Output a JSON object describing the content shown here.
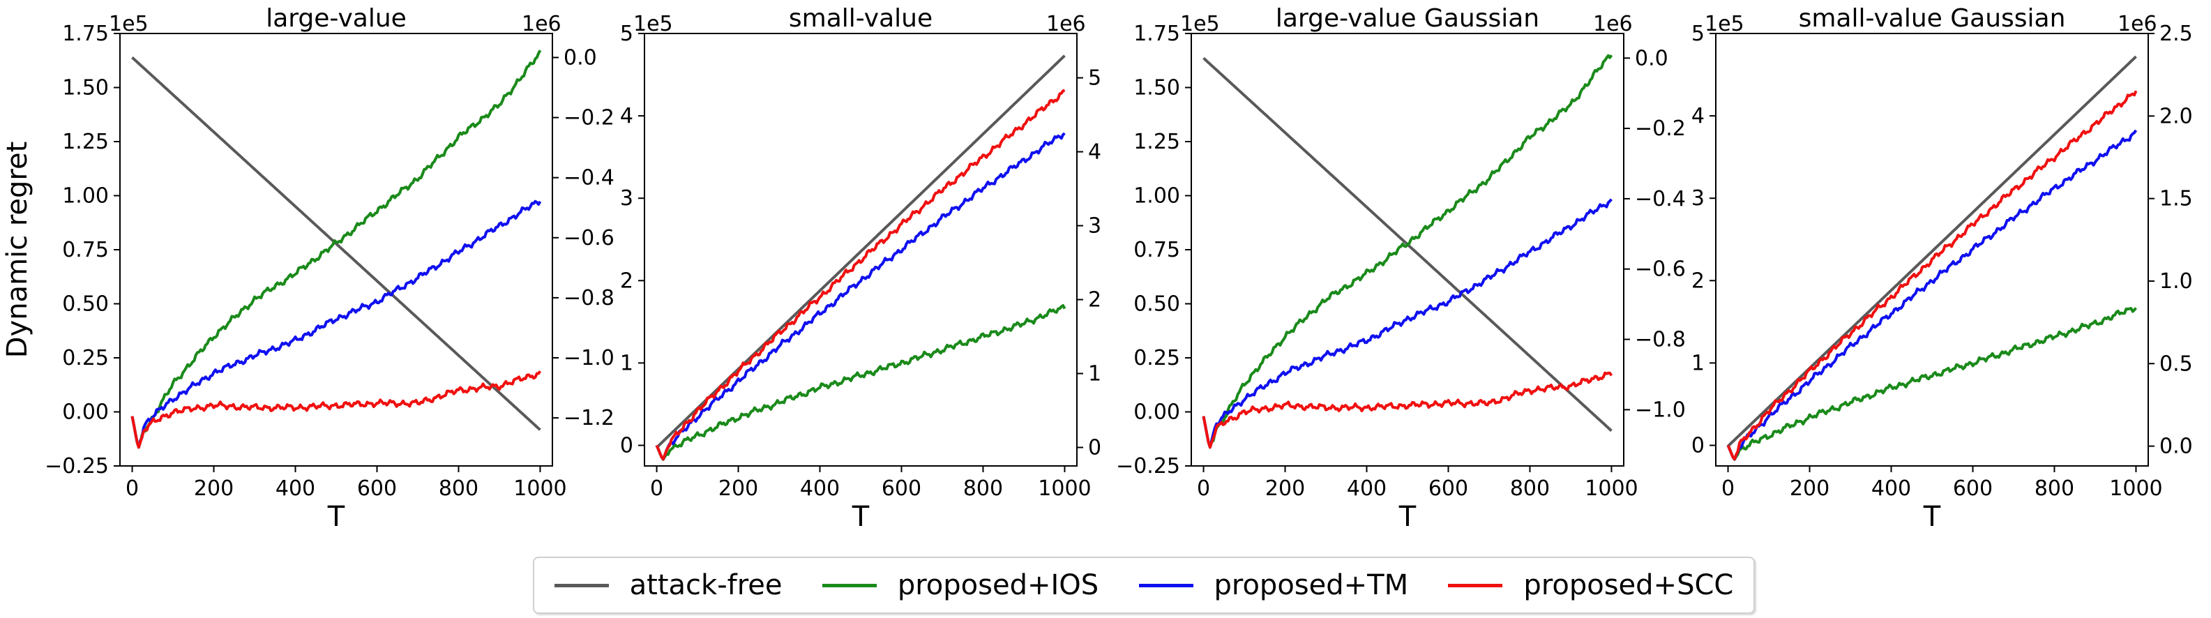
{
  "ylabel": "Dynamic regret",
  "colors": {
    "attack_free": "#595959",
    "ios": "#1a8a1a",
    "tm": "#1010f0",
    "scc": "#f01010"
  },
  "legend": [
    {
      "label": "attack-free",
      "key": "attack_free"
    },
    {
      "label": "proposed+IOS",
      "key": "ios"
    },
    {
      "label": "proposed+TM",
      "key": "tm"
    },
    {
      "label": "proposed+SCC",
      "key": "scc"
    }
  ],
  "chart_data": [
    {
      "type": "line",
      "title": "large-value",
      "xlabel": "T",
      "xlim": [
        -30,
        1030
      ],
      "xticks": [
        0,
        200,
        400,
        600,
        800,
        1000
      ],
      "left_axis": {
        "multiplier": "1e5",
        "ylim": [
          -0.25,
          1.75
        ],
        "ticks": [
          -0.25,
          0.0,
          0.25,
          0.5,
          0.75,
          1.0,
          1.25,
          1.5,
          1.75
        ],
        "ticklabels": [
          "−0.25",
          "0.00",
          "0.25",
          "0.50",
          "0.75",
          "1.00",
          "1.25",
          "1.50",
          "1.75"
        ]
      },
      "right_axis": {
        "multiplier": "1e6",
        "ylim": [
          -1.36,
          0.08
        ],
        "ticks": [
          0.0,
          -0.2,
          -0.4,
          -0.6,
          -0.8,
          -1.0,
          -1.2
        ],
        "ticklabels": [
          "0.0",
          "−0.2",
          "−0.4",
          "−0.6",
          "−0.8",
          "−1.0",
          "−1.2"
        ]
      },
      "series": [
        {
          "key": "attack_free",
          "axis": "right",
          "x": [
            0,
            1000
          ],
          "y": [
            0.0,
            -1.24
          ]
        },
        {
          "key": "ios",
          "axis": "left",
          "x": [
            0,
            15,
            30,
            50,
            100,
            200,
            300,
            400,
            500,
            600,
            700,
            800,
            900,
            1000
          ],
          "y": [
            -0.02,
            -0.17,
            -0.08,
            -0.03,
            0.13,
            0.35,
            0.52,
            0.64,
            0.78,
            0.93,
            1.08,
            1.27,
            1.42,
            1.66
          ]
        },
        {
          "key": "tm",
          "axis": "left",
          "x": [
            0,
            15,
            30,
            50,
            100,
            200,
            300,
            400,
            500,
            600,
            700,
            800,
            900,
            1000
          ],
          "y": [
            -0.02,
            -0.17,
            -0.06,
            -0.02,
            0.06,
            0.18,
            0.26,
            0.33,
            0.43,
            0.51,
            0.62,
            0.74,
            0.86,
            0.98
          ]
        },
        {
          "key": "scc",
          "axis": "left",
          "x": [
            0,
            15,
            30,
            50,
            100,
            200,
            300,
            400,
            500,
            600,
            700,
            800,
            900,
            1000
          ],
          "y": [
            -0.02,
            -0.17,
            -0.08,
            -0.05,
            0.0,
            0.03,
            0.02,
            0.02,
            0.03,
            0.04,
            0.04,
            0.1,
            0.12,
            0.18
          ]
        }
      ]
    },
    {
      "type": "line",
      "title": "small-value",
      "xlabel": "T",
      "xlim": [
        -30,
        1030
      ],
      "xticks": [
        0,
        200,
        400,
        600,
        800,
        1000
      ],
      "left_axis": {
        "multiplier": "1e5",
        "ylim": [
          -0.25,
          5.0
        ],
        "ticks": [
          0,
          1,
          2,
          3,
          4,
          5
        ],
        "ticklabels": [
          "0",
          "1",
          "2",
          "3",
          "4",
          "5"
        ]
      },
      "right_axis": {
        "multiplier": "1e6",
        "ylim": [
          -0.25,
          5.6
        ],
        "ticks": [
          0,
          1,
          2,
          3,
          4,
          5
        ],
        "ticklabels": [
          "0",
          "1",
          "2",
          "3",
          "4",
          "5"
        ]
      },
      "series": [
        {
          "key": "attack_free",
          "axis": "right",
          "x": [
            0,
            1000
          ],
          "y": [
            0.0,
            5.3
          ]
        },
        {
          "key": "ios",
          "axis": "left",
          "x": [
            0,
            15,
            30,
            100,
            200,
            300,
            400,
            500,
            600,
            700,
            800,
            900,
            1000
          ],
          "y": [
            0.0,
            -0.18,
            -0.05,
            0.12,
            0.34,
            0.52,
            0.7,
            0.85,
            1.0,
            1.16,
            1.32,
            1.48,
            1.68
          ]
        },
        {
          "key": "tm",
          "axis": "left",
          "x": [
            0,
            15,
            30,
            100,
            200,
            300,
            400,
            500,
            600,
            700,
            800,
            900,
            1000
          ],
          "y": [
            0.0,
            -0.18,
            0.0,
            0.35,
            0.78,
            1.2,
            1.6,
            2.0,
            2.38,
            2.76,
            3.12,
            3.46,
            3.8
          ]
        },
        {
          "key": "scc",
          "axis": "left",
          "x": [
            0,
            15,
            30,
            100,
            200,
            300,
            400,
            500,
            600,
            700,
            800,
            900,
            1000
          ],
          "y": [
            0.0,
            -0.18,
            0.02,
            0.42,
            0.9,
            1.36,
            1.8,
            2.25,
            2.68,
            3.1,
            3.5,
            3.9,
            4.3
          ]
        }
      ]
    },
    {
      "type": "line",
      "title": "large-value Gaussian",
      "xlabel": "T",
      "xlim": [
        -30,
        1030
      ],
      "xticks": [
        0,
        200,
        400,
        600,
        800,
        1000
      ],
      "left_axis": {
        "multiplier": "1e5",
        "ylim": [
          -0.25,
          1.75
        ],
        "ticks": [
          -0.25,
          0.0,
          0.25,
          0.5,
          0.75,
          1.0,
          1.25,
          1.5,
          1.75
        ],
        "ticklabels": [
          "−0.25",
          "0.00",
          "0.25",
          "0.50",
          "0.75",
          "1.00",
          "1.25",
          "1.50",
          "1.75"
        ]
      },
      "right_axis": {
        "multiplier": "1e6",
        "ylim": [
          -1.16,
          0.07
        ],
        "ticks": [
          0.0,
          -0.2,
          -0.4,
          -0.6,
          -0.8,
          -1.0
        ],
        "ticklabels": [
          "0.0",
          "−0.2",
          "−0.4",
          "−0.6",
          "−0.8",
          "−1.0"
        ]
      },
      "series": [
        {
          "key": "attack_free",
          "axis": "right",
          "x": [
            0,
            1000
          ],
          "y": [
            0.0,
            -1.06
          ]
        },
        {
          "key": "ios",
          "axis": "left",
          "x": [
            0,
            15,
            30,
            50,
            100,
            200,
            300,
            400,
            500,
            600,
            700,
            800,
            900,
            1000
          ],
          "y": [
            -0.02,
            -0.17,
            -0.08,
            -0.03,
            0.13,
            0.35,
            0.52,
            0.64,
            0.78,
            0.93,
            1.08,
            1.27,
            1.42,
            1.66
          ]
        },
        {
          "key": "tm",
          "axis": "left",
          "x": [
            0,
            15,
            30,
            50,
            100,
            200,
            300,
            400,
            500,
            600,
            700,
            800,
            900,
            1000
          ],
          "y": [
            -0.02,
            -0.17,
            -0.06,
            -0.02,
            0.06,
            0.18,
            0.26,
            0.33,
            0.43,
            0.51,
            0.62,
            0.74,
            0.86,
            0.98
          ]
        },
        {
          "key": "scc",
          "axis": "left",
          "x": [
            0,
            15,
            30,
            50,
            100,
            200,
            300,
            400,
            500,
            600,
            700,
            800,
            900,
            1000
          ],
          "y": [
            -0.02,
            -0.17,
            -0.08,
            -0.05,
            0.0,
            0.03,
            0.02,
            0.02,
            0.03,
            0.04,
            0.04,
            0.1,
            0.12,
            0.18
          ]
        }
      ]
    },
    {
      "type": "line",
      "title": "small-value Gaussian",
      "xlabel": "T",
      "xlim": [
        -30,
        1030
      ],
      "xticks": [
        0,
        200,
        400,
        600,
        800,
        1000
      ],
      "left_axis": {
        "multiplier": "1e5",
        "ylim": [
          -0.25,
          5.0
        ],
        "ticks": [
          0,
          1,
          2,
          3,
          4,
          5
        ],
        "ticklabels": [
          "0",
          "1",
          "2",
          "3",
          "4",
          "5"
        ]
      },
      "right_axis": {
        "multiplier": "1e6",
        "ylim": [
          -0.12,
          2.5
        ],
        "ticks": [
          0.0,
          0.5,
          1.0,
          1.5,
          2.0,
          2.5
        ],
        "ticklabels": [
          "0.0",
          "0.5",
          "1.0",
          "1.5",
          "2.0",
          "2.5"
        ]
      },
      "series": [
        {
          "key": "attack_free",
          "axis": "right",
          "x": [
            0,
            1000
          ],
          "y": [
            0.0,
            2.36
          ]
        },
        {
          "key": "ios",
          "axis": "left",
          "x": [
            0,
            15,
            30,
            100,
            200,
            300,
            400,
            500,
            600,
            700,
            800,
            900,
            1000
          ],
          "y": [
            0.0,
            -0.18,
            -0.05,
            0.12,
            0.34,
            0.52,
            0.7,
            0.85,
            1.0,
            1.16,
            1.32,
            1.48,
            1.68
          ]
        },
        {
          "key": "tm",
          "axis": "left",
          "x": [
            0,
            15,
            30,
            100,
            200,
            300,
            400,
            500,
            600,
            700,
            800,
            900,
            1000
          ],
          "y": [
            0.0,
            -0.18,
            0.0,
            0.35,
            0.78,
            1.2,
            1.6,
            2.0,
            2.38,
            2.76,
            3.12,
            3.46,
            3.8
          ]
        },
        {
          "key": "scc",
          "axis": "left",
          "x": [
            0,
            15,
            30,
            100,
            200,
            300,
            400,
            500,
            600,
            700,
            800,
            900,
            1000
          ],
          "y": [
            0.0,
            -0.18,
            0.02,
            0.42,
            0.9,
            1.36,
            1.8,
            2.25,
            2.68,
            3.1,
            3.5,
            3.9,
            4.3
          ]
        }
      ]
    }
  ]
}
